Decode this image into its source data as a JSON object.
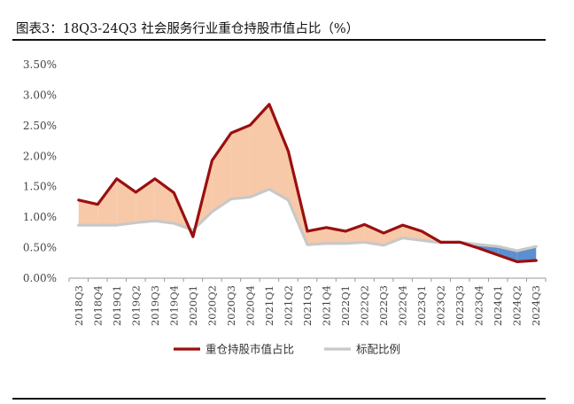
{
  "chart_data": {
    "type": "area",
    "title": "图表3：18Q3-24Q3 社会服务行业重仓持股市值占比（%）",
    "ylim": [
      0,
      3.5
    ],
    "yticks": [
      "0.00%",
      "0.50%",
      "1.00%",
      "1.50%",
      "2.00%",
      "2.50%",
      "3.00%",
      "3.50%"
    ],
    "categories": [
      "2018Q3",
      "2018Q4",
      "2019Q1",
      "2019Q2",
      "2019Q3",
      "2019Q4",
      "2020Q1",
      "2020Q2",
      "2020Q3",
      "2020Q4",
      "2021Q1",
      "2021Q2",
      "2021Q3",
      "2021Q4",
      "2022Q1",
      "2022Q2",
      "2022Q3",
      "2022Q4",
      "2023Q1",
      "2023Q2",
      "2023Q3",
      "2023Q4",
      "2024Q1",
      "2024Q2",
      "2024Q3"
    ],
    "series": [
      {
        "name": "重仓持股市值占比",
        "color": "#9a0f0f",
        "values": [
          1.28,
          1.21,
          1.63,
          1.41,
          1.63,
          1.4,
          0.68,
          1.93,
          2.38,
          2.51,
          2.85,
          2.08,
          0.77,
          0.83,
          0.77,
          0.88,
          0.74,
          0.87,
          0.77,
          0.59,
          0.59,
          0.49,
          0.38,
          0.27,
          0.29
        ]
      },
      {
        "name": "标配比例",
        "color": "#c8c8c8",
        "values": [
          0.87,
          0.87,
          0.87,
          0.91,
          0.94,
          0.9,
          0.79,
          1.09,
          1.3,
          1.33,
          1.46,
          1.28,
          0.55,
          0.57,
          0.57,
          0.59,
          0.54,
          0.66,
          0.62,
          0.58,
          0.59,
          0.55,
          0.52,
          0.45,
          0.52
        ]
      }
    ],
    "fill_above_color": "#f7c9a9",
    "fill_below_color": "#5b8fd0",
    "legend_position": "bottom",
    "grid": false
  }
}
